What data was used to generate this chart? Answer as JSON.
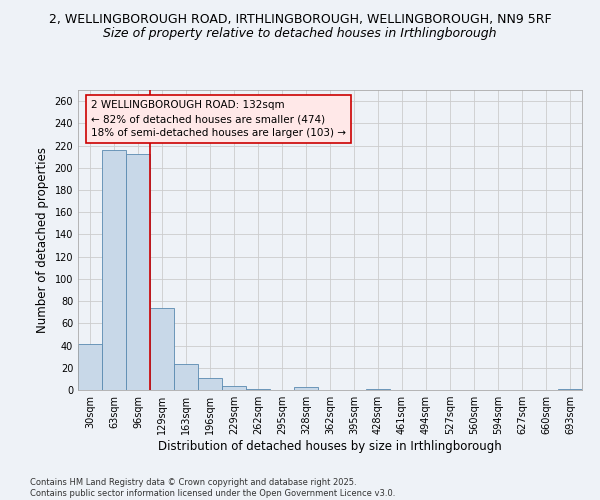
{
  "title_line1": "2, WELLINGBOROUGH ROAD, IRTHLINGBOROUGH, WELLINGBOROUGH, NN9 5RF",
  "title_line2": "Size of property relative to detached houses in Irthlingborough",
  "xlabel": "Distribution of detached houses by size in Irthlingborough",
  "ylabel": "Number of detached properties",
  "categories": [
    "30sqm",
    "63sqm",
    "96sqm",
    "129sqm",
    "163sqm",
    "196sqm",
    "229sqm",
    "262sqm",
    "295sqm",
    "328sqm",
    "362sqm",
    "395sqm",
    "428sqm",
    "461sqm",
    "494sqm",
    "527sqm",
    "560sqm",
    "594sqm",
    "627sqm",
    "660sqm",
    "693sqm"
  ],
  "values": [
    41,
    216,
    212,
    74,
    23,
    11,
    4,
    1,
    0,
    3,
    0,
    0,
    1,
    0,
    0,
    0,
    0,
    0,
    0,
    0,
    1
  ],
  "bar_color": "#c8d8e8",
  "bar_edge_color": "#5a8ab0",
  "property_line_x": 2.5,
  "annotation_text_line1": "2 WELLINGBOROUGH ROAD: 132sqm",
  "annotation_text_line2": "← 82% of detached houses are smaller (474)",
  "annotation_text_line3": "18% of semi-detached houses are larger (103) →",
  "annotation_box_facecolor": "#ffe8e8",
  "annotation_border_color": "#cc0000",
  "red_line_color": "#cc0000",
  "ylim": [
    0,
    270
  ],
  "yticks": [
    0,
    20,
    40,
    60,
    80,
    100,
    120,
    140,
    160,
    180,
    200,
    220,
    240,
    260
  ],
  "grid_color": "#cccccc",
  "bg_color": "#eef2f7",
  "footnote_line1": "Contains HM Land Registry data © Crown copyright and database right 2025.",
  "footnote_line2": "Contains public sector information licensed under the Open Government Licence v3.0.",
  "title_fontsize": 9,
  "subtitle_fontsize": 9,
  "axis_label_fontsize": 8.5,
  "tick_fontsize": 7,
  "annotation_fontsize": 7.5,
  "footnote_fontsize": 6
}
